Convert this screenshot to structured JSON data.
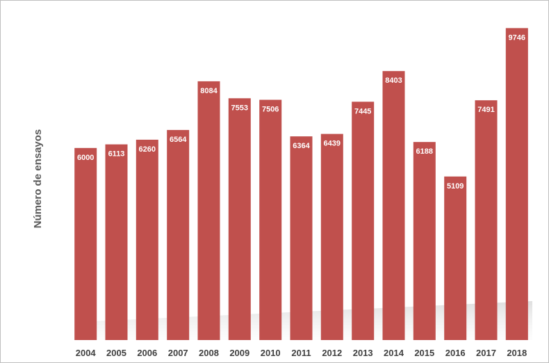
{
  "chart_data": {
    "type": "bar",
    "title": "",
    "xlabel": "",
    "ylabel": "Número de ensayos",
    "categories": [
      "2004",
      "2005",
      "2006",
      "2007",
      "2008",
      "2009",
      "2010",
      "2011",
      "2012",
      "2013",
      "2014",
      "2015",
      "2016",
      "2017",
      "2018"
    ],
    "values": [
      6000,
      6113,
      6260,
      6564,
      8084,
      7553,
      7506,
      6364,
      6439,
      7445,
      8403,
      6188,
      5109,
      7491,
      9746
    ],
    "data_labels": [
      "6000",
      "6113",
      "6260",
      "6564",
      "8084",
      "7553",
      "7506",
      "6364",
      "6439",
      "7445",
      "8403",
      "6188",
      "5109",
      "7491",
      "9746"
    ],
    "ylim": [
      0,
      10000
    ],
    "grid": false,
    "legend": "none",
    "bar_color": "#c0504d",
    "data_label_color": "#ffffff"
  }
}
